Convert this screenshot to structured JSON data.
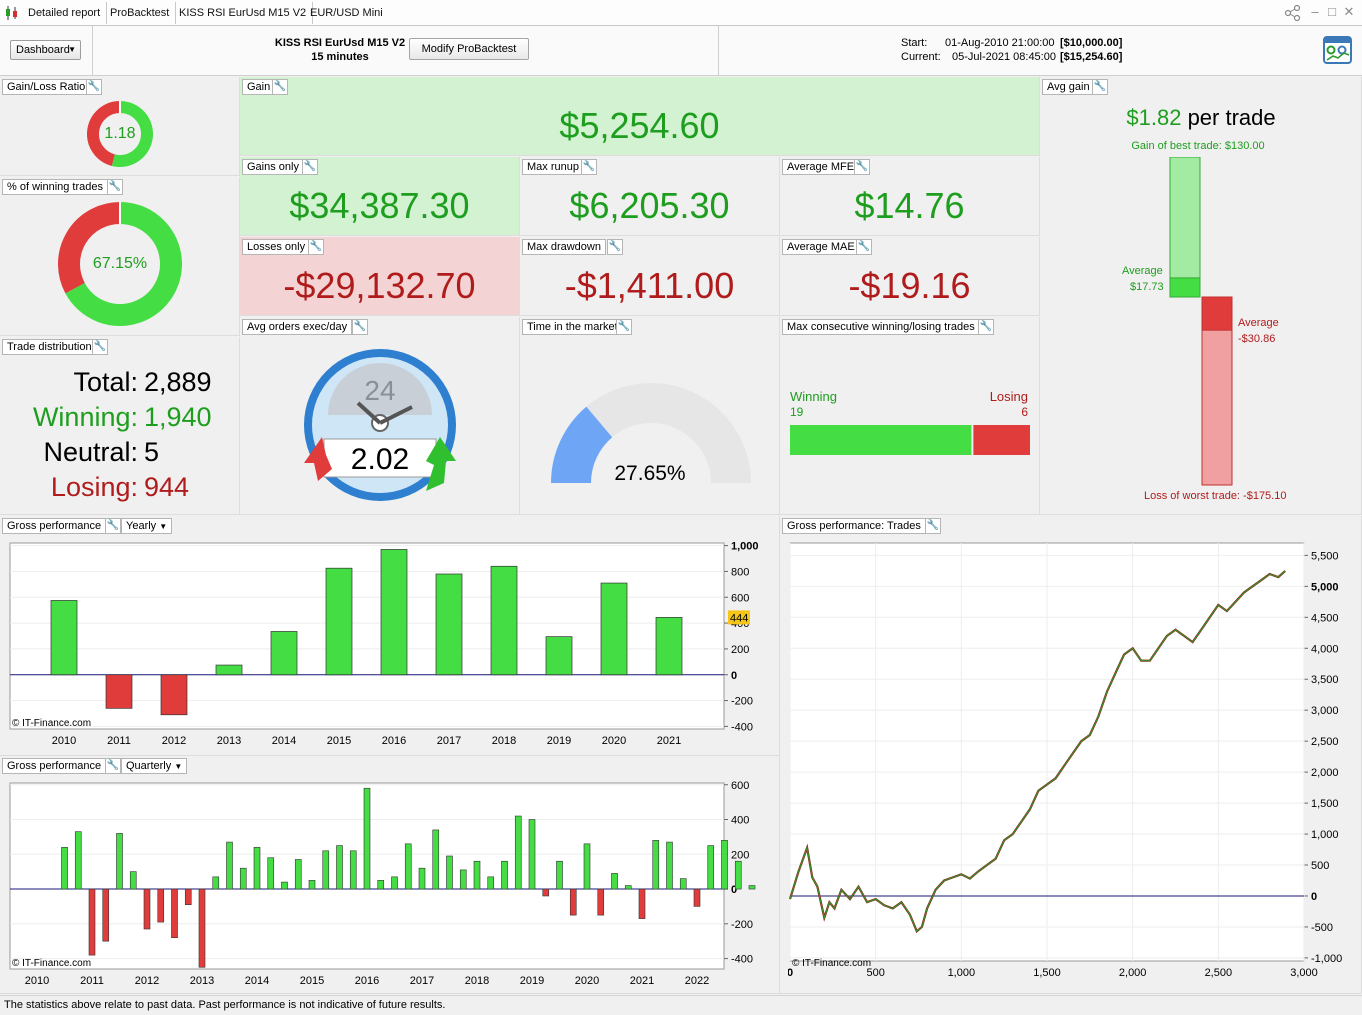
{
  "tabs": [
    {
      "label": "Detailed report"
    },
    {
      "label": "ProBacktest"
    },
    {
      "label": "KISS RSI EurUsd M15 V2"
    },
    {
      "label": "EUR/USD Mini"
    }
  ],
  "header": {
    "dashboard_label": "Dashboard",
    "strategy_title": "KISS RSI EurUsd M15 V2",
    "timeframe": "15 minutes",
    "modify_label": "Modify ProBacktest",
    "start_label": "Start:",
    "start_date": "01-Aug-2010 21:00:00",
    "start_value": "[$10,000.00]",
    "current_label": "Current:",
    "current_date": "05-Jul-2021 08:45:00",
    "current_value": "[$15,254.60]"
  },
  "gain_loss_ratio": {
    "label": "Gain/Loss Ratio",
    "value": "1.18",
    "win_fraction": 0.54
  },
  "pct_winning": {
    "label": "% of winning trades",
    "value": "67.15%",
    "fraction": 0.6715
  },
  "trade_distribution": {
    "label": "Trade distribution",
    "total_label": "Total:",
    "total": "2,889",
    "winning_label": "Winning:",
    "winning": "1,940",
    "neutral_label": "Neutral:",
    "neutral": "5",
    "losing_label": "Losing:",
    "losing": "944"
  },
  "gain": {
    "label": "Gain",
    "value": "$5,254.60"
  },
  "gains_only": {
    "label": "Gains only",
    "value": "$34,387.30"
  },
  "losses_only": {
    "label": "Losses only",
    "value": "-$29,132.70"
  },
  "max_runup": {
    "label": "Max runup",
    "value": "$6,205.30"
  },
  "max_drawdown": {
    "label": "Max drawdown",
    "value": "-$1,411.00"
  },
  "avg_mfe": {
    "label": "Average MFE",
    "value": "$14.76"
  },
  "avg_mae": {
    "label": "Average MAE",
    "value": "-$19.16"
  },
  "avg_orders": {
    "label": "Avg orders exec/day",
    "clock_number": "24",
    "value": "2.02"
  },
  "time_in_market": {
    "label": "Time in the market",
    "value": "27.65%",
    "fraction": 0.2765
  },
  "max_consecutive": {
    "label": "Max consecutive winning/losing trades",
    "winning_label": "Winning",
    "winning": "19",
    "losing_label": "Losing",
    "losing": "6"
  },
  "avg_gain": {
    "label": "Avg gain",
    "value": "$1.82",
    "suffix": "per trade",
    "best_label": "Gain of best trade: $130.00",
    "avg_pos_label": "Average",
    "avg_pos_value": "$17.73",
    "avg_neg_label": "Average",
    "avg_neg_value": "-$30.86",
    "worst_label": "Loss of worst trade: -$175.10",
    "best": 130.0,
    "avg_pos": 17.73,
    "avg_neg": -30.86,
    "worst": -175.1
  },
  "yearly_panel": {
    "label": "Gross performance",
    "period": "Yearly",
    "copyright": "© IT-Finance.com"
  },
  "quarterly_panel": {
    "label": "Gross performance",
    "period": "Quarterly",
    "copyright": "© IT-Finance.com"
  },
  "trades_panel": {
    "label": "Gross performance: Trades",
    "copyright": "© IT-Finance.com"
  },
  "footer_text": "The statistics above relate to past data. Past performance is not indicative of future results.",
  "colors": {
    "green": "#44dd44",
    "red": "#e03c3c",
    "gain_bg": "#d2f2d2",
    "loss_bg": "#f3d3d3",
    "accent": "#1e9e1e"
  },
  "chart_data": [
    {
      "type": "bar",
      "categories": [
        "2010",
        "2011",
        "2012",
        "2013",
        "2014",
        "2015",
        "2016",
        "2017",
        "2018",
        "2019",
        "2020",
        "2021"
      ],
      "values": [
        575,
        -260,
        -310,
        75,
        335,
        825,
        970,
        780,
        840,
        295,
        710,
        444
      ],
      "ylim": [
        -420,
        1020
      ],
      "yticks": [
        "-400",
        "-200",
        "0",
        "200",
        "400",
        "600",
        "800",
        "1,000"
      ],
      "ytick_values": [
        -400,
        -200,
        0,
        200,
        400,
        600,
        800,
        1000
      ],
      "highlight_label": "444",
      "highlight_value": 444
    },
    {
      "type": "bar",
      "xticks": [
        "2010",
        "2011",
        "2012",
        "2013",
        "2014",
        "2015",
        "2016",
        "2017",
        "2018",
        "2019",
        "2020",
        "2021",
        "2022"
      ],
      "values": [
        240,
        330,
        -380,
        -300,
        320,
        100,
        -230,
        -190,
        -280,
        -90,
        -450,
        70,
        270,
        120,
        240,
        180,
        40,
        170,
        50,
        220,
        250,
        220,
        580,
        50,
        70,
        260,
        120,
        340,
        190,
        110,
        160,
        70,
        160,
        420,
        400,
        -40,
        160,
        -150,
        260,
        -150,
        90,
        20,
        -170,
        280,
        270,
        60,
        -100,
        250,
        280,
        160,
        20
      ],
      "ylim": [
        -460,
        610
      ],
      "yticks": [
        "-400",
        "-200",
        "0",
        "200",
        "400",
        "600"
      ],
      "ytick_values": [
        -400,
        -200,
        0,
        200,
        400,
        600
      ]
    },
    {
      "type": "line",
      "xlim": [
        0,
        3000
      ],
      "ylim": [
        -1050,
        5700
      ],
      "xticks": [
        "0",
        "500",
        "1,000",
        "1,500",
        "2,000",
        "2,500",
        "3,000"
      ],
      "xtick_values": [
        0,
        500,
        1000,
        1500,
        2000,
        2500,
        3000
      ],
      "yticks": [
        "-1,000",
        "-500",
        "0",
        "500",
        "1,000",
        "1,500",
        "2,000",
        "2,500",
        "3,000",
        "3,500",
        "4,000",
        "4,500",
        "5,000",
        "5,500"
      ],
      "ytick_values": [
        -1000,
        -500,
        0,
        500,
        1000,
        1500,
        2000,
        2500,
        3000,
        3500,
        4000,
        4500,
        5000,
        5500
      ],
      "x": [
        0,
        50,
        100,
        130,
        160,
        200,
        230,
        260,
        300,
        350,
        400,
        450,
        500,
        550,
        600,
        650,
        700,
        740,
        770,
        800,
        850,
        900,
        950,
        1000,
        1050,
        1100,
        1150,
        1200,
        1250,
        1300,
        1350,
        1400,
        1450,
        1500,
        1550,
        1600,
        1650,
        1700,
        1750,
        1800,
        1850,
        1900,
        1950,
        2000,
        2050,
        2100,
        2150,
        2200,
        2250,
        2300,
        2350,
        2400,
        2450,
        2500,
        2550,
        2600,
        2650,
        2700,
        2750,
        2800,
        2850,
        2890
      ],
      "y": [
        -50,
        400,
        780,
        300,
        150,
        -350,
        -100,
        -200,
        100,
        -50,
        150,
        -100,
        -50,
        -150,
        -200,
        -100,
        -300,
        -570,
        -500,
        -200,
        100,
        250,
        300,
        350,
        280,
        400,
        500,
        600,
        900,
        1000,
        1200,
        1400,
        1700,
        1800,
        1900,
        2100,
        2300,
        2500,
        2600,
        2900,
        3300,
        3600,
        3900,
        4000,
        3800,
        3800,
        4000,
        4200,
        4300,
        4200,
        4100,
        4300,
        4500,
        4700,
        4600,
        4750,
        4900,
        5000,
        5100,
        5200,
        5150,
        5250
      ]
    }
  ]
}
